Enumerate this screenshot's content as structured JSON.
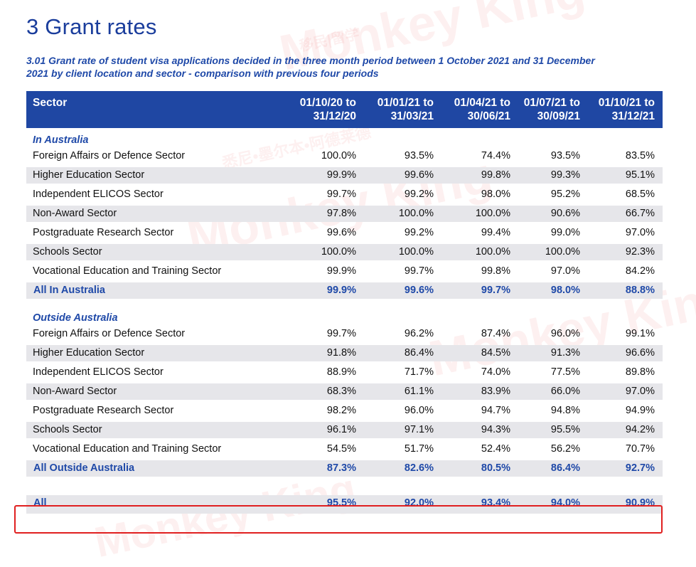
{
  "page_title": "3 Grant rates",
  "caption": "3.01 Grant rate of student visa applications decided in the three month period between 1 October 2021 and 31 December 2021 by client location and sector - comparison with previous four periods",
  "table": {
    "header_sector": "Sector",
    "periods": [
      {
        "line1": "01/10/20 to",
        "line2": "31/12/20"
      },
      {
        "line1": "01/01/21 to",
        "line2": "31/03/21"
      },
      {
        "line1": "01/04/21 to",
        "line2": "30/06/21"
      },
      {
        "line1": "01/07/21 to",
        "line2": "30/09/21"
      },
      {
        "line1": "01/10/21 to",
        "line2": "31/12/21"
      }
    ],
    "in_australia": {
      "heading": "In Australia",
      "rows": [
        {
          "sector": "Foreign Affairs or Defence Sector",
          "values": [
            "100.0%",
            "93.5%",
            "74.4%",
            "93.5%",
            "83.5%"
          ]
        },
        {
          "sector": "Higher Education Sector",
          "values": [
            "99.9%",
            "99.6%",
            "99.8%",
            "99.3%",
            "95.1%"
          ]
        },
        {
          "sector": "Independent ELICOS Sector",
          "values": [
            "99.7%",
            "99.2%",
            "98.0%",
            "95.2%",
            "68.5%"
          ]
        },
        {
          "sector": "Non-Award Sector",
          "values": [
            "97.8%",
            "100.0%",
            "100.0%",
            "90.6%",
            "66.7%"
          ]
        },
        {
          "sector": "Postgraduate Research Sector",
          "values": [
            "99.6%",
            "99.2%",
            "99.4%",
            "99.0%",
            "97.0%"
          ]
        },
        {
          "sector": "Schools Sector",
          "values": [
            "100.0%",
            "100.0%",
            "100.0%",
            "100.0%",
            "92.3%"
          ]
        },
        {
          "sector": "Vocational Education and Training Sector",
          "values": [
            "99.9%",
            "99.7%",
            "99.8%",
            "97.0%",
            "84.2%"
          ]
        }
      ],
      "total": {
        "sector": "All In Australia",
        "values": [
          "99.9%",
          "99.6%",
          "99.7%",
          "98.0%",
          "88.8%"
        ]
      }
    },
    "outside_australia": {
      "heading": "Outside Australia",
      "rows": [
        {
          "sector": "Foreign Affairs or Defence Sector",
          "values": [
            "99.7%",
            "96.2%",
            "87.4%",
            "96.0%",
            "99.1%"
          ]
        },
        {
          "sector": "Higher Education Sector",
          "values": [
            "91.8%",
            "86.4%",
            "84.5%",
            "91.3%",
            "96.6%"
          ]
        },
        {
          "sector": "Independent ELICOS Sector",
          "values": [
            "88.9%",
            "71.7%",
            "74.0%",
            "77.5%",
            "89.8%"
          ]
        },
        {
          "sector": "Non-Award Sector",
          "values": [
            "68.3%",
            "61.1%",
            "83.9%",
            "66.0%",
            "97.0%"
          ]
        },
        {
          "sector": "Postgraduate Research Sector",
          "values": [
            "98.2%",
            "96.0%",
            "94.7%",
            "94.8%",
            "94.9%"
          ]
        },
        {
          "sector": "Schools Sector",
          "values": [
            "96.1%",
            "97.1%",
            "94.3%",
            "95.5%",
            "94.2%"
          ]
        },
        {
          "sector": "Vocational Education and Training Sector",
          "values": [
            "54.5%",
            "51.7%",
            "52.4%",
            "56.2%",
            "70.7%"
          ]
        }
      ],
      "total": {
        "sector": "All Outside Australia",
        "values": [
          "87.3%",
          "82.6%",
          "80.5%",
          "86.4%",
          "92.7%"
        ]
      }
    },
    "grand_total": {
      "sector": "All",
      "values": [
        "95.5%",
        "92.0%",
        "93.4%",
        "94.0%",
        "90.9%"
      ]
    }
  },
  "watermark": {
    "brand": "Monkey King",
    "tagline_cn": "移民|留学",
    "sub_cn": "悉尼•墨尔本•阿德莱德"
  },
  "colors": {
    "header_bg": "#1f47a3",
    "title": "#1a3d9c",
    "highlight_box": "#e02020",
    "row_shade": "#e6e6ea"
  }
}
